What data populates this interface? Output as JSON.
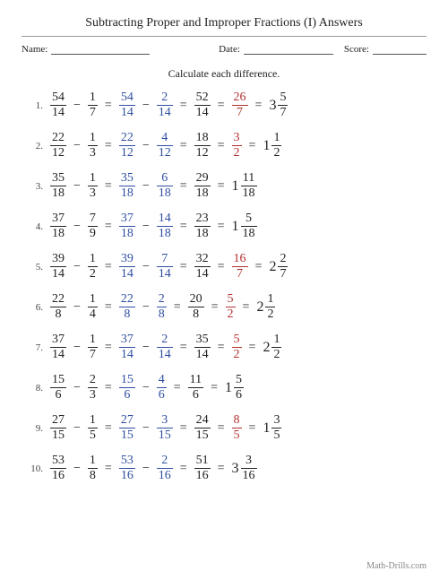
{
  "title": "Subtracting Proper and Improper Fractions (I) Answers",
  "labels": {
    "name": "Name:",
    "date": "Date:",
    "score": "Score:"
  },
  "instruction": "Calculate each difference.",
  "footer": "Math-Drills.com",
  "colors": {
    "black": "#222222",
    "blue": "#2f4ea1",
    "red": "#b23030"
  },
  "problems": [
    {
      "terms": [
        {
          "type": "frac",
          "n": "54",
          "d": "14",
          "color": "black"
        },
        {
          "type": "op",
          "text": "−",
          "color": "black"
        },
        {
          "type": "frac",
          "n": "1",
          "d": "7",
          "color": "black"
        },
        {
          "type": "eq",
          "color": "black"
        },
        {
          "type": "frac",
          "n": "54",
          "d": "14",
          "color": "blue"
        },
        {
          "type": "op",
          "text": "−",
          "color": "black"
        },
        {
          "type": "frac",
          "n": "2",
          "d": "14",
          "color": "blue"
        },
        {
          "type": "eq",
          "color": "black"
        },
        {
          "type": "frac",
          "n": "52",
          "d": "14",
          "color": "black"
        },
        {
          "type": "eq",
          "color": "black"
        },
        {
          "type": "frac",
          "n": "26",
          "d": "7",
          "color": "red"
        },
        {
          "type": "eq",
          "color": "black"
        },
        {
          "type": "mixed",
          "w": "3",
          "n": "5",
          "d": "7",
          "color": "black"
        }
      ]
    },
    {
      "terms": [
        {
          "type": "frac",
          "n": "22",
          "d": "12",
          "color": "black"
        },
        {
          "type": "op",
          "text": "−",
          "color": "black"
        },
        {
          "type": "frac",
          "n": "1",
          "d": "3",
          "color": "black"
        },
        {
          "type": "eq",
          "color": "black"
        },
        {
          "type": "frac",
          "n": "22",
          "d": "12",
          "color": "blue"
        },
        {
          "type": "op",
          "text": "−",
          "color": "black"
        },
        {
          "type": "frac",
          "n": "4",
          "d": "12",
          "color": "blue"
        },
        {
          "type": "eq",
          "color": "black"
        },
        {
          "type": "frac",
          "n": "18",
          "d": "12",
          "color": "black"
        },
        {
          "type": "eq",
          "color": "black"
        },
        {
          "type": "frac",
          "n": "3",
          "d": "2",
          "color": "red"
        },
        {
          "type": "eq",
          "color": "black"
        },
        {
          "type": "mixed",
          "w": "1",
          "n": "1",
          "d": "2",
          "color": "black"
        }
      ]
    },
    {
      "terms": [
        {
          "type": "frac",
          "n": "35",
          "d": "18",
          "color": "black"
        },
        {
          "type": "op",
          "text": "−",
          "color": "black"
        },
        {
          "type": "frac",
          "n": "1",
          "d": "3",
          "color": "black"
        },
        {
          "type": "eq",
          "color": "black"
        },
        {
          "type": "frac",
          "n": "35",
          "d": "18",
          "color": "blue"
        },
        {
          "type": "op",
          "text": "−",
          "color": "black"
        },
        {
          "type": "frac",
          "n": "6",
          "d": "18",
          "color": "blue"
        },
        {
          "type": "eq",
          "color": "black"
        },
        {
          "type": "frac",
          "n": "29",
          "d": "18",
          "color": "black"
        },
        {
          "type": "eq",
          "color": "black"
        },
        {
          "type": "mixed",
          "w": "1",
          "n": "11",
          "d": "18",
          "color": "black"
        }
      ]
    },
    {
      "terms": [
        {
          "type": "frac",
          "n": "37",
          "d": "18",
          "color": "black"
        },
        {
          "type": "op",
          "text": "−",
          "color": "black"
        },
        {
          "type": "frac",
          "n": "7",
          "d": "9",
          "color": "black"
        },
        {
          "type": "eq",
          "color": "black"
        },
        {
          "type": "frac",
          "n": "37",
          "d": "18",
          "color": "blue"
        },
        {
          "type": "op",
          "text": "−",
          "color": "black"
        },
        {
          "type": "frac",
          "n": "14",
          "d": "18",
          "color": "blue"
        },
        {
          "type": "eq",
          "color": "black"
        },
        {
          "type": "frac",
          "n": "23",
          "d": "18",
          "color": "black"
        },
        {
          "type": "eq",
          "color": "black"
        },
        {
          "type": "mixed",
          "w": "1",
          "n": "5",
          "d": "18",
          "color": "black"
        }
      ]
    },
    {
      "terms": [
        {
          "type": "frac",
          "n": "39",
          "d": "14",
          "color": "black"
        },
        {
          "type": "op",
          "text": "−",
          "color": "black"
        },
        {
          "type": "frac",
          "n": "1",
          "d": "2",
          "color": "black"
        },
        {
          "type": "eq",
          "color": "black"
        },
        {
          "type": "frac",
          "n": "39",
          "d": "14",
          "color": "blue"
        },
        {
          "type": "op",
          "text": "−",
          "color": "black"
        },
        {
          "type": "frac",
          "n": "7",
          "d": "14",
          "color": "blue"
        },
        {
          "type": "eq",
          "color": "black"
        },
        {
          "type": "frac",
          "n": "32",
          "d": "14",
          "color": "black"
        },
        {
          "type": "eq",
          "color": "black"
        },
        {
          "type": "frac",
          "n": "16",
          "d": "7",
          "color": "red"
        },
        {
          "type": "eq",
          "color": "black"
        },
        {
          "type": "mixed",
          "w": "2",
          "n": "2",
          "d": "7",
          "color": "black"
        }
      ]
    },
    {
      "terms": [
        {
          "type": "frac",
          "n": "22",
          "d": "8",
          "color": "black"
        },
        {
          "type": "op",
          "text": "−",
          "color": "black"
        },
        {
          "type": "frac",
          "n": "1",
          "d": "4",
          "color": "black"
        },
        {
          "type": "eq",
          "color": "black"
        },
        {
          "type": "frac",
          "n": "22",
          "d": "8",
          "color": "blue"
        },
        {
          "type": "op",
          "text": "−",
          "color": "black"
        },
        {
          "type": "frac",
          "n": "2",
          "d": "8",
          "color": "blue"
        },
        {
          "type": "eq",
          "color": "black"
        },
        {
          "type": "frac",
          "n": "20",
          "d": "8",
          "color": "black"
        },
        {
          "type": "eq",
          "color": "black"
        },
        {
          "type": "frac",
          "n": "5",
          "d": "2",
          "color": "red"
        },
        {
          "type": "eq",
          "color": "black"
        },
        {
          "type": "mixed",
          "w": "2",
          "n": "1",
          "d": "2",
          "color": "black"
        }
      ]
    },
    {
      "terms": [
        {
          "type": "frac",
          "n": "37",
          "d": "14",
          "color": "black"
        },
        {
          "type": "op",
          "text": "−",
          "color": "black"
        },
        {
          "type": "frac",
          "n": "1",
          "d": "7",
          "color": "black"
        },
        {
          "type": "eq",
          "color": "black"
        },
        {
          "type": "frac",
          "n": "37",
          "d": "14",
          "color": "blue"
        },
        {
          "type": "op",
          "text": "−",
          "color": "black"
        },
        {
          "type": "frac",
          "n": "2",
          "d": "14",
          "color": "blue"
        },
        {
          "type": "eq",
          "color": "black"
        },
        {
          "type": "frac",
          "n": "35",
          "d": "14",
          "color": "black"
        },
        {
          "type": "eq",
          "color": "black"
        },
        {
          "type": "frac",
          "n": "5",
          "d": "2",
          "color": "red"
        },
        {
          "type": "eq",
          "color": "black"
        },
        {
          "type": "mixed",
          "w": "2",
          "n": "1",
          "d": "2",
          "color": "black"
        }
      ]
    },
    {
      "terms": [
        {
          "type": "frac",
          "n": "15",
          "d": "6",
          "color": "black"
        },
        {
          "type": "op",
          "text": "−",
          "color": "black"
        },
        {
          "type": "frac",
          "n": "2",
          "d": "3",
          "color": "black"
        },
        {
          "type": "eq",
          "color": "black"
        },
        {
          "type": "frac",
          "n": "15",
          "d": "6",
          "color": "blue"
        },
        {
          "type": "op",
          "text": "−",
          "color": "black"
        },
        {
          "type": "frac",
          "n": "4",
          "d": "6",
          "color": "blue"
        },
        {
          "type": "eq",
          "color": "black"
        },
        {
          "type": "frac",
          "n": "11",
          "d": "6",
          "color": "black"
        },
        {
          "type": "eq",
          "color": "black"
        },
        {
          "type": "mixed",
          "w": "1",
          "n": "5",
          "d": "6",
          "color": "black"
        }
      ]
    },
    {
      "terms": [
        {
          "type": "frac",
          "n": "27",
          "d": "15",
          "color": "black"
        },
        {
          "type": "op",
          "text": "−",
          "color": "black"
        },
        {
          "type": "frac",
          "n": "1",
          "d": "5",
          "color": "black"
        },
        {
          "type": "eq",
          "color": "black"
        },
        {
          "type": "frac",
          "n": "27",
          "d": "15",
          "color": "blue"
        },
        {
          "type": "op",
          "text": "−",
          "color": "black"
        },
        {
          "type": "frac",
          "n": "3",
          "d": "15",
          "color": "blue"
        },
        {
          "type": "eq",
          "color": "black"
        },
        {
          "type": "frac",
          "n": "24",
          "d": "15",
          "color": "black"
        },
        {
          "type": "eq",
          "color": "black"
        },
        {
          "type": "frac",
          "n": "8",
          "d": "5",
          "color": "red"
        },
        {
          "type": "eq",
          "color": "black"
        },
        {
          "type": "mixed",
          "w": "1",
          "n": "3",
          "d": "5",
          "color": "black"
        }
      ]
    },
    {
      "terms": [
        {
          "type": "frac",
          "n": "53",
          "d": "16",
          "color": "black"
        },
        {
          "type": "op",
          "text": "−",
          "color": "black"
        },
        {
          "type": "frac",
          "n": "1",
          "d": "8",
          "color": "black"
        },
        {
          "type": "eq",
          "color": "black"
        },
        {
          "type": "frac",
          "n": "53",
          "d": "16",
          "color": "blue"
        },
        {
          "type": "op",
          "text": "−",
          "color": "black"
        },
        {
          "type": "frac",
          "n": "2",
          "d": "16",
          "color": "blue"
        },
        {
          "type": "eq",
          "color": "black"
        },
        {
          "type": "frac",
          "n": "51",
          "d": "16",
          "color": "black"
        },
        {
          "type": "eq",
          "color": "black"
        },
        {
          "type": "mixed",
          "w": "3",
          "n": "3",
          "d": "16",
          "color": "black"
        }
      ]
    }
  ]
}
